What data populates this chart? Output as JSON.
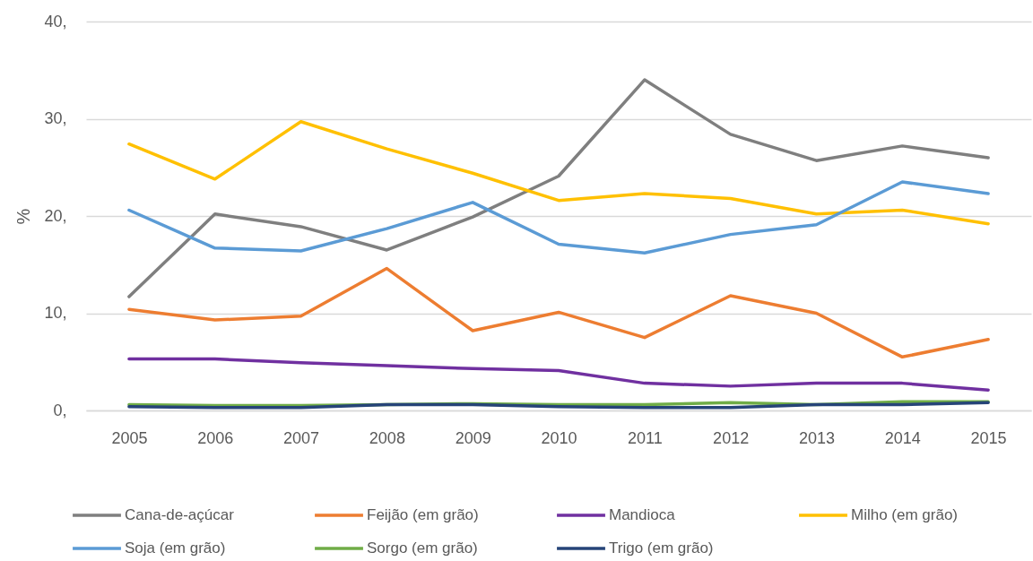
{
  "chart_data": {
    "type": "line",
    "ylabel": "%",
    "categories": [
      "2005",
      "2006",
      "2007",
      "2008",
      "2009",
      "2010",
      "2011",
      "2012",
      "2013",
      "2014",
      "2015"
    ],
    "series": [
      {
        "name": "Cana-de-açúcar",
        "color": "#7f7f7f",
        "values": [
          11.7,
          20.2,
          18.9,
          16.5,
          19.9,
          24.1,
          34.0,
          28.4,
          25.7,
          27.2,
          26.0
        ]
      },
      {
        "name": "Feijão (em grão)",
        "color": "#ed7d31",
        "values": [
          10.4,
          9.3,
          9.7,
          14.6,
          8.2,
          10.1,
          7.5,
          11.8,
          10.0,
          5.5,
          7.3
        ]
      },
      {
        "name": "Mandioca",
        "color": "#7030a0",
        "values": [
          5.3,
          5.3,
          4.9,
          4.6,
          4.3,
          4.1,
          2.8,
          2.5,
          2.8,
          2.8,
          2.1
        ]
      },
      {
        "name": "Milho (em grão)",
        "color": "#ffc000",
        "values": [
          27.4,
          23.8,
          29.7,
          26.9,
          24.4,
          21.6,
          22.3,
          21.8,
          20.2,
          20.6,
          19.2
        ]
      },
      {
        "name": "Soja (em grão)",
        "color": "#5b9bd5",
        "values": [
          20.6,
          16.7,
          16.4,
          18.7,
          21.4,
          17.1,
          16.2,
          18.1,
          19.1,
          23.5,
          22.3
        ]
      },
      {
        "name": "Sorgo (em grão)",
        "color": "#70ad47",
        "values": [
          0.6,
          0.5,
          0.5,
          0.6,
          0.7,
          0.6,
          0.6,
          0.8,
          0.6,
          0.9,
          0.9
        ]
      },
      {
        "name": "Trigo (em grão)",
        "color": "#264478",
        "values": [
          0.4,
          0.3,
          0.3,
          0.6,
          0.6,
          0.4,
          0.3,
          0.3,
          0.6,
          0.6,
          0.8
        ]
      }
    ],
    "ylim": [
      0,
      40
    ],
    "yticks": [
      {
        "value": 0,
        "label": "0,"
      },
      {
        "value": 10,
        "label": "10,"
      },
      {
        "value": 20,
        "label": "20,"
      },
      {
        "value": 30,
        "label": "30,"
      },
      {
        "value": 40,
        "label": "40,"
      }
    ],
    "grid": "y",
    "legend": "bottom"
  }
}
